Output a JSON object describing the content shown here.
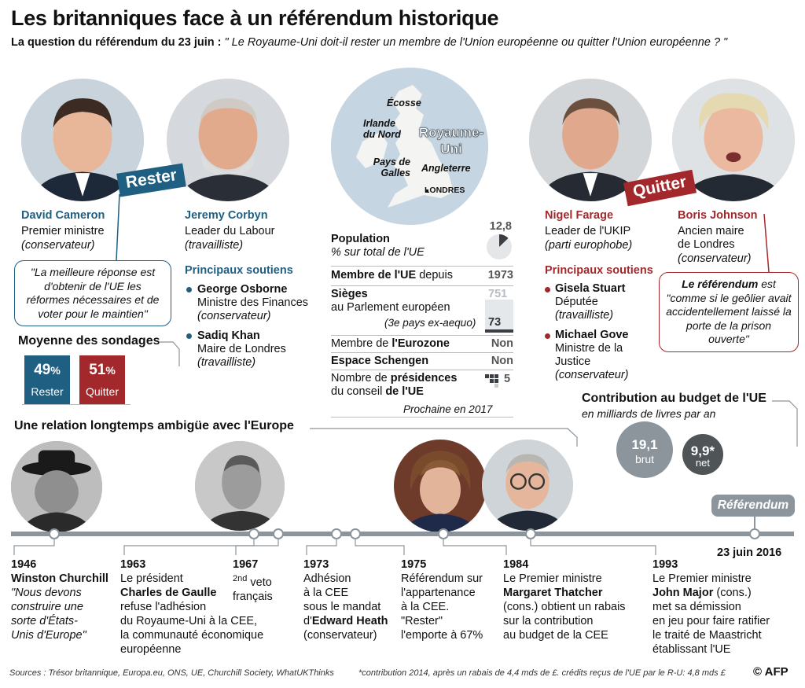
{
  "title": "Les britanniques face à un référendum historique",
  "question": {
    "label": "La question du référendum du 23 juin :",
    "text": "\" Le Royaume-Uni doit-il rester un membre de l'Union européenne ou quitter l'Union européenne ? \""
  },
  "colors": {
    "remain": "#1f5f82",
    "leave": "#a3282b",
    "grey": "#8c959b"
  },
  "remain": {
    "label": "Rester",
    "cameron": {
      "name": "David Cameron",
      "role": "Premier ministre",
      "party": "(conservateur)"
    },
    "corbyn": {
      "name": "Jeremy Corbyn",
      "role": "Leader du Labour",
      "party": "(travailliste)"
    },
    "quote": "\"La meilleure réponse est d'obtenir de l'UE les réformes nécessaires et de voter pour le maintien\"",
    "supporters_title": "Principaux soutiens",
    "supporters": [
      {
        "name": "George Osborne",
        "role": "Ministre des Finances",
        "party": "(conservateur)"
      },
      {
        "name": "Sadiq Khan",
        "role": "Maire de Londres",
        "party": "(travailliste)"
      }
    ]
  },
  "leave": {
    "label": "Quitter",
    "farage": {
      "name": "Nigel Farage",
      "role": "Leader de l'UKIP",
      "party": "(parti europhobe)"
    },
    "johnson": {
      "name": "Boris Johnson",
      "role1": "Ancien maire",
      "role2": "de Londres",
      "party": "(conservateur)"
    },
    "quote_lead": "Le référendum",
    "quote_rest": " est \"comme si le geôlier avait accidentellement laissé la porte de la prison ouverte\"",
    "supporters_title": "Principaux soutiens",
    "supporters": [
      {
        "name": "Gisela Stuart",
        "role": "Députée",
        "party": "(travailliste)"
      },
      {
        "name": "Michael Gove",
        "role1": "Ministre de la",
        "role2": "Justice",
        "party": "(conservateur)"
      }
    ]
  },
  "map": {
    "ecosse": "Écosse",
    "irlande": "Irlande du Nord",
    "royaume": "Royaume-Uni",
    "galles": "Pays de Galles",
    "angleterre": "Angleterre",
    "londres": "LONDRES"
  },
  "stats": {
    "population_label": "Population",
    "population_sub": "% sur total de l'UE",
    "population_value": "12,8",
    "population_pct": 12.8,
    "member_label": "Membre de l'UE",
    "member_suffix": " depuis",
    "member_value": "1973",
    "seats_label": "Sièges",
    "seats_sub": "au Parlement européen",
    "seats_note": "(3e pays ex-aequo)",
    "seats_total": "751",
    "seats_uk": "73",
    "seats_total_num": 751,
    "seats_uk_num": 73,
    "eurozone_prefix": "Membre de ",
    "eurozone_label": "l'Eurozone",
    "eurozone_value": "Non",
    "schengen_label": "Espace Schengen",
    "schengen_value": "Non",
    "presidency_l1a": "Nombre de ",
    "presidency_l1b": "présidences",
    "presidency_l2a": "du conseil ",
    "presidency_l2b": "de l'UE",
    "presidency_value": "5",
    "presidency_next": "Prochaine en 2017"
  },
  "polls": {
    "title": "Moyenne des sondages",
    "remain_pct": "49",
    "leave_pct": "51",
    "pct_sign": "%",
    "remain_label": "Rester",
    "leave_label": "Quitter"
  },
  "budget": {
    "title": "Contribution au budget de l'UE",
    "subtitle": "en milliards de livres par an",
    "gross_value": "19,1",
    "gross_label": "brut",
    "net_value": "9,9*",
    "net_label": "net",
    "gross_num": 19.1,
    "net_num": 9.9
  },
  "timeline": {
    "title": "Une relation longtemps ambigüe avec l'Europe",
    "referendum_label": "Référendum",
    "referendum_date": "23 juin 2016",
    "events": {
      "e1946": {
        "year": "1946",
        "name": "Winston Churchill",
        "text": "\"Nous devons construire une sorte d'États-Unis d'Europe\""
      },
      "e1963": {
        "year": "1963",
        "l1": "Le président",
        "name": "Charles de Gaulle",
        "l3": "refuse l'adhésion",
        "l4": "du Royaume-Uni à la CEE,",
        "l5": "la communauté économique",
        "l6": "européenne"
      },
      "e1967": {
        "year": "1967",
        "nd": "2nd",
        "l1": " veto",
        "l2": "français"
      },
      "e1973": {
        "year": "1973",
        "l1": "Adhésion",
        "l2": "à la CEE",
        "l3": "sous le mandat",
        "l4a": "d'",
        "l4b": "Edward Heath",
        "l5": "(conservateur)"
      },
      "e1975": {
        "year": "1975",
        "l1": "Référendum sur",
        "l2": "l'appartenance",
        "l3": "à la CEE.",
        "l4": "\"Rester\"",
        "l5": "l'emporte à 67%"
      },
      "e1984": {
        "year": "1984",
        "l1": "Le Premier ministre",
        "name": "Margaret Thatcher",
        "l3": "(cons.) obtient un rabais",
        "l4": "sur la contribution",
        "l5": "au budget de la CEE"
      },
      "e1993": {
        "year": "1993",
        "l1": "Le Premier ministre",
        "name": "John Major",
        "name_suffix": " (cons.)",
        "l3": "met sa démission",
        "l4": "en jeu pour faire ratifier",
        "l5": "le traité de Maastricht",
        "l6": "établissant l'UE"
      }
    }
  },
  "footer": {
    "sources": "Sources : Trésor britannique, Europa.eu, ONS, UE, Churchill Society, WhatUKThinks",
    "note": "*contribution 2014, après un rabais de 4,4 mds de £. crédits reçus de l'UE par le R-U: 4,8 mds £",
    "credit": "© AFP"
  }
}
